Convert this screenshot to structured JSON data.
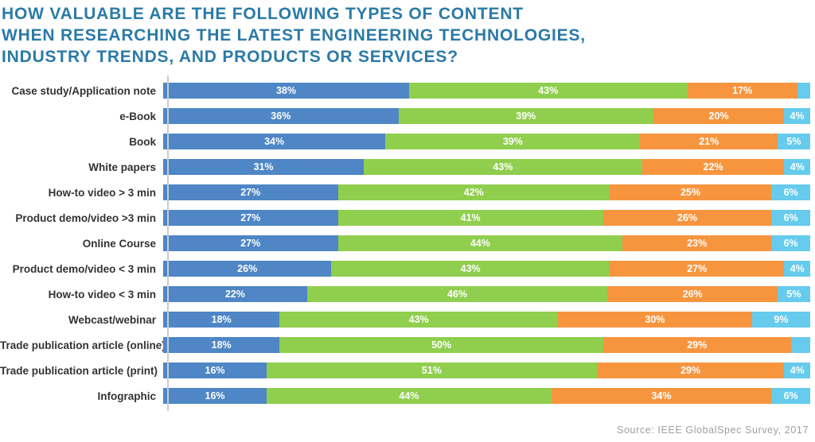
{
  "title": {
    "line1": "HOW VALUABLE ARE THE FOLLOWING TYPES OF CONTENT",
    "line2": "WHEN RESEARCHING THE LATEST ENGINEERING TECHNOLOGIES,",
    "line3": "INDUSTRY TRENDS, AND PRODUCTS OR SERVICES?"
  },
  "source": "Source: IEEE GlobalSpec Survey, 2017",
  "colors": {
    "title_text": "#2b7aa6",
    "category_label_text": "#333333",
    "segment_blue": "#4e86c6",
    "segment_green": "#90ce4e",
    "segment_orange": "#f7953f",
    "segment_cyan": "#66cbec",
    "axis_line": "#cccccc",
    "source_text": "#9aa0a5"
  },
  "chart_data": {
    "type": "bar",
    "subtype": "horizontal-stacked",
    "title": "HOW VALUABLE ARE THE FOLLOWING TYPES OF CONTENT WHEN RESEARCHING THE LATEST ENGINEERING TECHNOLOGIES, INDUSTRY TRENDS, AND PRODUCTS OR SERVICES?",
    "xlabel": "",
    "ylabel": "",
    "xlim": [
      0,
      100
    ],
    "grid": false,
    "legend": "none",
    "categories": [
      "Case study/Application note",
      "e-Book",
      "Book",
      "White papers",
      "How-to video > 3 min",
      "Product demo/video >3 min",
      "Online Course",
      "Product demo/video < 3 min",
      "How-to video < 3 min",
      "Webcast/webinar",
      "Trade publication article (online)",
      "Trade publication article (print)",
      "Infographic"
    ],
    "series": [
      {
        "name": "blue-segment",
        "color": "#4e86c6",
        "values": [
          38,
          36,
          34,
          31,
          27,
          27,
          27,
          26,
          22,
          18,
          18,
          16,
          16
        ]
      },
      {
        "name": "green-segment",
        "color": "#90ce4e",
        "values": [
          43,
          39,
          39,
          43,
          42,
          41,
          44,
          43,
          46,
          43,
          50,
          51,
          44
        ]
      },
      {
        "name": "orange-segment",
        "color": "#f7953f",
        "values": [
          17,
          20,
          21,
          22,
          25,
          26,
          23,
          27,
          26,
          30,
          29,
          29,
          34
        ]
      },
      {
        "name": "cyan-segment",
        "color": "#66cbec",
        "values": [
          2,
          4,
          5,
          4,
          6,
          6,
          6,
          4,
          5,
          9,
          3,
          4,
          6
        ]
      }
    ],
    "rows": [
      {
        "category": "Case study/Application note",
        "segments": [
          {
            "color": "#4e86c6",
            "value": 38,
            "label": "38%"
          },
          {
            "color": "#90ce4e",
            "value": 43,
            "label": "43%"
          },
          {
            "color": "#f7953f",
            "value": 17,
            "label": "17%"
          },
          {
            "color": "#66cbec",
            "value": 2,
            "label": ""
          }
        ]
      },
      {
        "category": "e-Book",
        "segments": [
          {
            "color": "#4e86c6",
            "value": 36,
            "label": "36%"
          },
          {
            "color": "#90ce4e",
            "value": 39,
            "label": "39%"
          },
          {
            "color": "#f7953f",
            "value": 20,
            "label": "20%"
          },
          {
            "color": "#66cbec",
            "value": 4,
            "label": "4%"
          }
        ]
      },
      {
        "category": "Book",
        "segments": [
          {
            "color": "#4e86c6",
            "value": 34,
            "label": "34%"
          },
          {
            "color": "#90ce4e",
            "value": 39,
            "label": "39%"
          },
          {
            "color": "#f7953f",
            "value": 21,
            "label": "21%"
          },
          {
            "color": "#66cbec",
            "value": 5,
            "label": "5%"
          }
        ]
      },
      {
        "category": "White papers",
        "segments": [
          {
            "color": "#4e86c6",
            "value": 31,
            "label": "31%"
          },
          {
            "color": "#90ce4e",
            "value": 43,
            "label": "43%"
          },
          {
            "color": "#f7953f",
            "value": 22,
            "label": "22%"
          },
          {
            "color": "#66cbec",
            "value": 4,
            "label": "4%"
          }
        ]
      },
      {
        "category": "How-to video > 3 min",
        "segments": [
          {
            "color": "#4e86c6",
            "value": 27,
            "label": "27%"
          },
          {
            "color": "#90ce4e",
            "value": 42,
            "label": "42%"
          },
          {
            "color": "#f7953f",
            "value": 25,
            "label": "25%"
          },
          {
            "color": "#66cbec",
            "value": 6,
            "label": "6%"
          }
        ]
      },
      {
        "category": "Product demo/video >3 min",
        "segments": [
          {
            "color": "#4e86c6",
            "value": 27,
            "label": "27%"
          },
          {
            "color": "#90ce4e",
            "value": 41,
            "label": "41%"
          },
          {
            "color": "#f7953f",
            "value": 26,
            "label": "26%"
          },
          {
            "color": "#66cbec",
            "value": 6,
            "label": "6%"
          }
        ]
      },
      {
        "category": "Online Course",
        "segments": [
          {
            "color": "#4e86c6",
            "value": 27,
            "label": "27%"
          },
          {
            "color": "#90ce4e",
            "value": 44,
            "label": "44%"
          },
          {
            "color": "#f7953f",
            "value": 23,
            "label": "23%"
          },
          {
            "color": "#66cbec",
            "value": 6,
            "label": "6%"
          }
        ]
      },
      {
        "category": "Product demo/video < 3 min",
        "segments": [
          {
            "color": "#4e86c6",
            "value": 26,
            "label": "26%"
          },
          {
            "color": "#90ce4e",
            "value": 43,
            "label": "43%"
          },
          {
            "color": "#f7953f",
            "value": 27,
            "label": "27%"
          },
          {
            "color": "#66cbec",
            "value": 4,
            "label": "4%"
          }
        ]
      },
      {
        "category": "How-to video < 3 min",
        "segments": [
          {
            "color": "#4e86c6",
            "value": 22,
            "label": "22%"
          },
          {
            "color": "#90ce4e",
            "value": 46,
            "label": "46%"
          },
          {
            "color": "#f7953f",
            "value": 26,
            "label": "26%"
          },
          {
            "color": "#66cbec",
            "value": 5,
            "label": "5%"
          }
        ]
      },
      {
        "category": "Webcast/webinar",
        "segments": [
          {
            "color": "#4e86c6",
            "value": 18,
            "label": "18%"
          },
          {
            "color": "#90ce4e",
            "value": 43,
            "label": "43%"
          },
          {
            "color": "#f7953f",
            "value": 30,
            "label": "30%"
          },
          {
            "color": "#66cbec",
            "value": 9,
            "label": "9%"
          }
        ]
      },
      {
        "category": "Trade publication article (online)",
        "segments": [
          {
            "color": "#4e86c6",
            "value": 18,
            "label": "18%"
          },
          {
            "color": "#90ce4e",
            "value": 50,
            "label": "50%"
          },
          {
            "color": "#f7953f",
            "value": 29,
            "label": "29%"
          },
          {
            "color": "#66cbec",
            "value": 3,
            "label": ""
          }
        ]
      },
      {
        "category": "Trade publication article (print)",
        "segments": [
          {
            "color": "#4e86c6",
            "value": 16,
            "label": "16%"
          },
          {
            "color": "#90ce4e",
            "value": 51,
            "label": "51%"
          },
          {
            "color": "#f7953f",
            "value": 29,
            "label": "29%"
          },
          {
            "color": "#66cbec",
            "value": 4,
            "label": "4%"
          }
        ]
      },
      {
        "category": "Infographic",
        "segments": [
          {
            "color": "#4e86c6",
            "value": 16,
            "label": "16%"
          },
          {
            "color": "#90ce4e",
            "value": 44,
            "label": "44%"
          },
          {
            "color": "#f7953f",
            "value": 34,
            "label": "34%"
          },
          {
            "color": "#66cbec",
            "value": 6,
            "label": "6%"
          }
        ]
      }
    ]
  }
}
